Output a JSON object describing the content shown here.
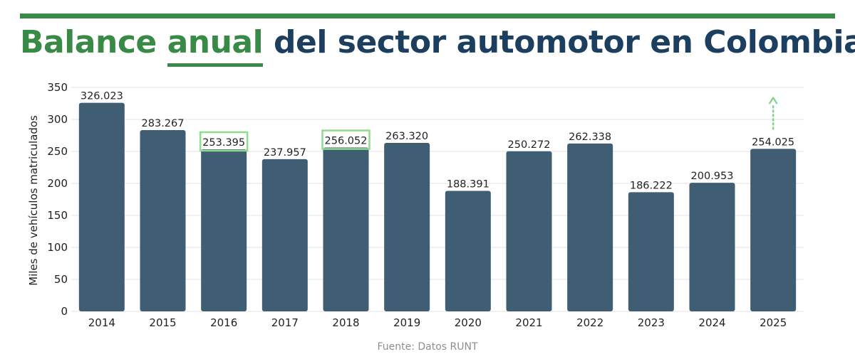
{
  "title": {
    "part1": "Balance ",
    "part2": "anual",
    "part3": " del sector automotor en Colombia"
  },
  "source": "Fuente: Datos RUNT",
  "colors": {
    "bar": "#3f5e73",
    "title_green": "#3a8a47",
    "title_blue": "#1d3f5f",
    "highlight_box": "#8fdc8f",
    "arrow": "#7fd38a",
    "grid": "#e3e3e3"
  },
  "chart_data": {
    "type": "bar",
    "title": "Balance anual del sector automotor en Colombia",
    "xlabel": "",
    "ylabel": "Miles de vehículos matriculados",
    "ylim": [
      0,
      350
    ],
    "yticks": [
      0,
      50,
      100,
      150,
      200,
      250,
      300,
      350
    ],
    "grid": true,
    "categories": [
      "2014",
      "2015",
      "2016",
      "2017",
      "2018",
      "2019",
      "2020",
      "2021",
      "2022",
      "2023",
      "2024",
      "2025"
    ],
    "values": [
      326.023,
      283.267,
      253.395,
      237.957,
      256.052,
      263.32,
      188.391,
      250.272,
      262.338,
      186.222,
      200.953,
      254.025
    ],
    "labels": [
      "326.023",
      "283.267",
      "253.395",
      "237.957",
      "256.052",
      "263.320",
      "188.391",
      "250.272",
      "262.338",
      "186.222",
      "200.953",
      "254.025"
    ],
    "highlighted": [
      "2016",
      "2018"
    ],
    "upward_arrow_on": "2025"
  }
}
